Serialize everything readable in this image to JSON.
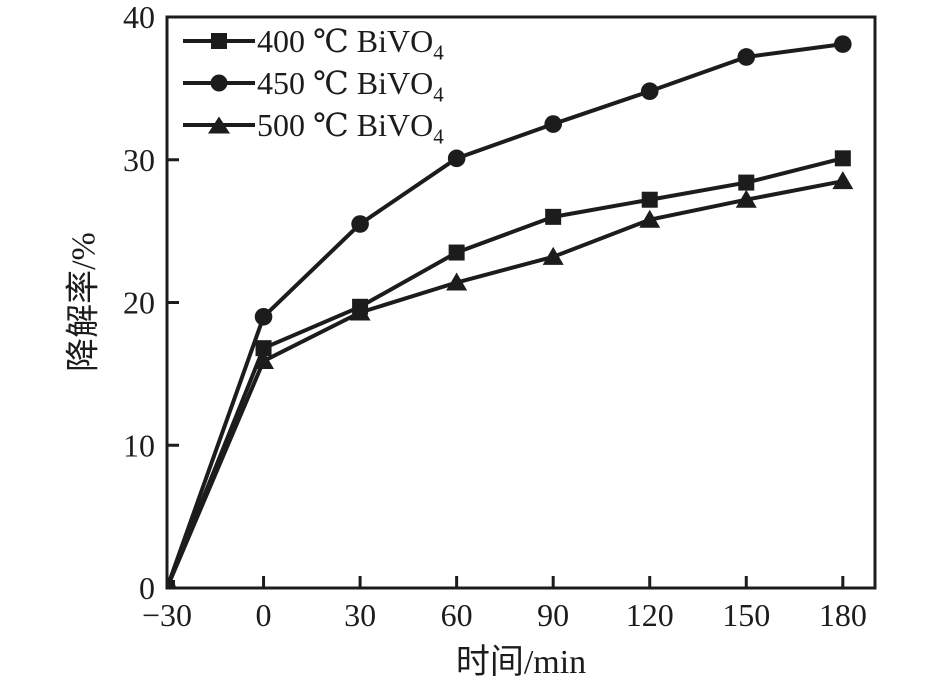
{
  "colors": {
    "line": "#1c1c1c",
    "background": "#ffffff"
  },
  "legend": {
    "items": [
      {
        "prefix": "400 ℃ BiVO",
        "sub": "4",
        "marker": "square"
      },
      {
        "prefix": "450 ℃ BiVO",
        "sub": "4",
        "marker": "circle"
      },
      {
        "prefix": "500 ℃ BiVO",
        "sub": "4",
        "marker": "triangle"
      }
    ]
  },
  "chart_data": {
    "type": "line",
    "title": "",
    "xlabel": "时间/min",
    "ylabel": "降解率/%",
    "xlim": [
      -30,
      190
    ],
    "ylim": [
      0,
      40
    ],
    "grid": false,
    "legend_position": "top-left",
    "x": [
      -30,
      0,
      30,
      60,
      90,
      120,
      150,
      180
    ],
    "xticks": {
      "values": [
        -30,
        0,
        30,
        60,
        90,
        120,
        150,
        180
      ],
      "labels": [
        "−30",
        "0",
        "30",
        "60",
        "90",
        "120",
        "150",
        "180"
      ]
    },
    "yticks": {
      "values": [
        0,
        10,
        20,
        30,
        40
      ],
      "labels": [
        "0",
        "10",
        "20",
        "30",
        "40"
      ]
    },
    "series": [
      {
        "name": "400 ℃ BiVO4",
        "marker": "square",
        "values": [
          0,
          16.8,
          19.7,
          23.5,
          26.0,
          27.2,
          28.4,
          30.1
        ]
      },
      {
        "name": "450 ℃ BiVO4",
        "marker": "circle",
        "values": [
          0,
          19.0,
          25.5,
          30.1,
          32.5,
          34.8,
          37.2,
          38.1
        ]
      },
      {
        "name": "500 ℃ BiVO4",
        "marker": "triangle",
        "values": [
          0,
          15.9,
          19.3,
          21.4,
          23.2,
          25.8,
          27.2,
          28.5
        ]
      }
    ]
  }
}
